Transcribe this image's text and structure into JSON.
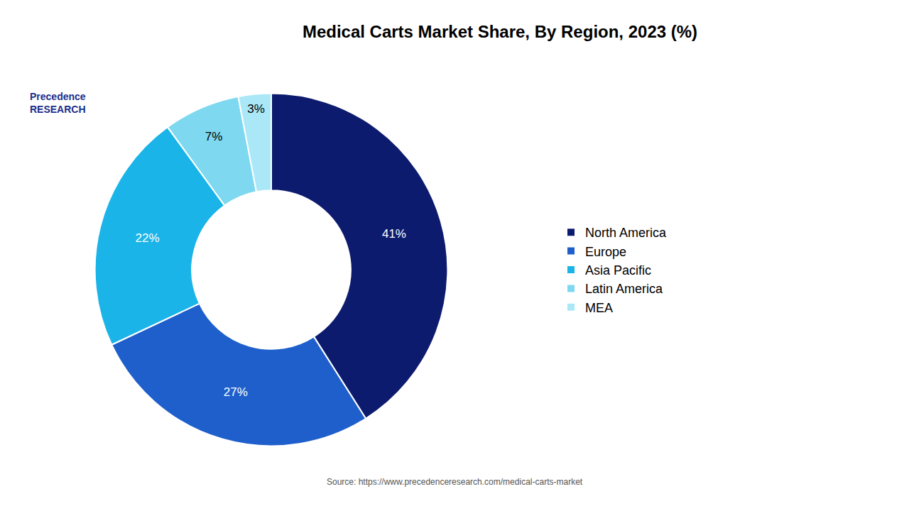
{
  "chart_data": {
    "type": "donut",
    "title": "Medical Carts Market Share, By Region, 2023 (%)",
    "categories": [
      "North America",
      "Europe",
      "Asia Pacific",
      "Latin America",
      "MEA"
    ],
    "values": [
      41,
      27,
      22,
      7,
      3
    ],
    "value_labels": [
      "41%",
      "27%",
      "22%",
      "7%",
      "3%"
    ],
    "data_labels": true,
    "colors": [
      "#0d1b6e",
      "#1e5fcc",
      "#1ab4e8",
      "#7dd8f0",
      "#aae8f8"
    ],
    "legend": "right",
    "annotations": [
      "Source: https://www.precedenceresearch.com/medical-carts-market",
      "Precedence\nRESEARCH"
    ]
  }
}
